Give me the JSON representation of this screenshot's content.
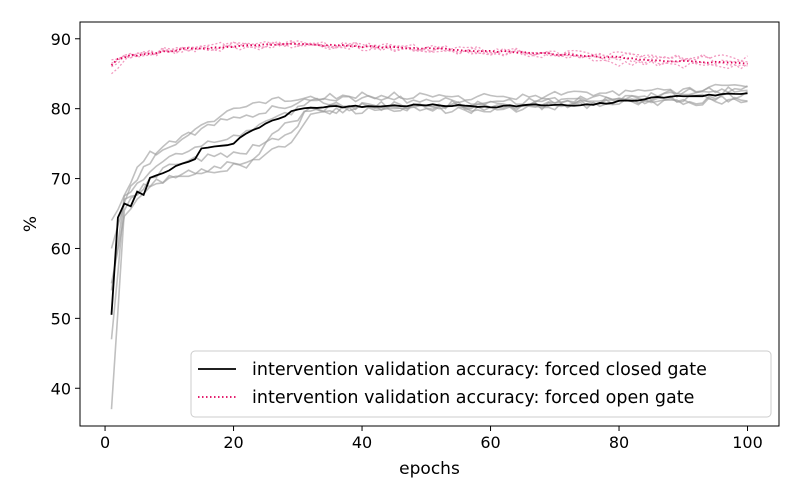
{
  "chart_data": {
    "type": "line",
    "xlabel": "epochs",
    "ylabel": "%",
    "xlim": [
      -3.9,
      104.9
    ],
    "ylim": [
      34.6,
      92.4
    ],
    "xticks": [
      0,
      20,
      40,
      60,
      80,
      100
    ],
    "yticks": [
      40,
      50,
      60,
      70,
      80,
      90
    ],
    "grid": false,
    "legend_position": "lower-right",
    "colors": {
      "closed_mean": "#000000",
      "closed_runs": "#9e9e9e",
      "open_mean": "#e0005a",
      "open_runs": "#f29ac0"
    },
    "series": [
      {
        "name": "intervention validation accuracy: forced closed gate",
        "style": "solid",
        "keypoints": [
          [
            1,
            50.5
          ],
          [
            2,
            64.5
          ],
          [
            3,
            66.3
          ],
          [
            4,
            66
          ],
          [
            5,
            68
          ],
          [
            6,
            67.8
          ],
          [
            7,
            70
          ],
          [
            8,
            70.5
          ],
          [
            10,
            71.3
          ],
          [
            12,
            72
          ],
          [
            14,
            72.8
          ],
          [
            15,
            74.3
          ],
          [
            18,
            74.6
          ],
          [
            20,
            75
          ],
          [
            22,
            76.5
          ],
          [
            24,
            77.4
          ],
          [
            26,
            78.2
          ],
          [
            28,
            79
          ],
          [
            30,
            80
          ],
          [
            34,
            80.3
          ],
          [
            40,
            80.3
          ],
          [
            44,
            80.4
          ],
          [
            50,
            80.5
          ],
          [
            56,
            80.4
          ],
          [
            60,
            80.3
          ],
          [
            66,
            80.5
          ],
          [
            70,
            80.5
          ],
          [
            74,
            80.4
          ],
          [
            80,
            81
          ],
          [
            86,
            81.6
          ],
          [
            90,
            81.8
          ],
          [
            94,
            81.9
          ],
          [
            97,
            82.1
          ],
          [
            100,
            82.2
          ]
        ]
      },
      {
        "name": "intervention validation accuracy: forced open gate",
        "style": "dotted",
        "keypoints": [
          [
            1,
            86.2
          ],
          [
            2,
            87.2
          ],
          [
            4,
            87.6
          ],
          [
            8,
            88
          ],
          [
            12,
            88.5
          ],
          [
            18,
            88.8
          ],
          [
            24,
            89.1
          ],
          [
            28,
            89.3
          ],
          [
            34,
            89.1
          ],
          [
            40,
            88.9
          ],
          [
            50,
            88.6
          ],
          [
            60,
            88.2
          ],
          [
            66,
            88
          ],
          [
            70,
            87.8
          ],
          [
            76,
            87.5
          ],
          [
            80,
            87.3
          ],
          [
            84,
            87
          ],
          [
            90,
            86.8
          ],
          [
            96,
            86.6
          ],
          [
            100,
            86.5
          ]
        ]
      }
    ],
    "individual_runs": {
      "closed_gate": [
        {
          "start": 37.0,
          "keypoints": [
            [
              1,
              37
            ],
            [
              3,
              65.5
            ],
            [
              6,
              69
            ],
            [
              10,
              70
            ],
            [
              16,
              71.5
            ],
            [
              22,
              72.5
            ],
            [
              28,
              74.5
            ],
            [
              32,
              79
            ],
            [
              40,
              80.5
            ],
            [
              60,
              80.6
            ],
            [
              80,
              81.2
            ],
            [
              100,
              83.5
            ]
          ]
        },
        {
          "start": 47.0,
          "keypoints": [
            [
              1,
              47
            ],
            [
              3,
              66.5
            ],
            [
              6,
              69
            ],
            [
              10,
              72
            ],
            [
              16,
              73
            ],
            [
              22,
              74
            ],
            [
              28,
              76
            ],
            [
              32,
              80
            ],
            [
              40,
              80.3
            ],
            [
              60,
              80
            ],
            [
              80,
              81
            ],
            [
              100,
              81
            ]
          ]
        },
        {
          "start": 54.0,
          "keypoints": [
            [
              1,
              54
            ],
            [
              3,
              67.5
            ],
            [
              6,
              70
            ],
            [
              10,
              73.5
            ],
            [
              16,
              75
            ],
            [
              22,
              76.5
            ],
            [
              28,
              79
            ],
            [
              32,
              81
            ],
            [
              40,
              80.5
            ],
            [
              60,
              80.4
            ],
            [
              80,
              81
            ],
            [
              100,
              82
            ]
          ]
        },
        {
          "start": 60.0,
          "keypoints": [
            [
              1,
              60
            ],
            [
              3,
              67
            ],
            [
              6,
              71.5
            ],
            [
              10,
              75
            ],
            [
              16,
              77.5
            ],
            [
              22,
              79
            ],
            [
              28,
              80.5
            ],
            [
              32,
              81
            ],
            [
              40,
              81.5
            ],
            [
              60,
              81
            ],
            [
              80,
              81.5
            ],
            [
              100,
              82.8
            ]
          ]
        },
        {
          "start": 64.0,
          "keypoints": [
            [
              1,
              64
            ],
            [
              3,
              67.5
            ],
            [
              6,
              73
            ],
            [
              10,
              74.5
            ],
            [
              16,
              78
            ],
            [
              22,
              80.5
            ],
            [
              28,
              81.3
            ],
            [
              32,
              81.6
            ],
            [
              40,
              82
            ],
            [
              60,
              81.7
            ],
            [
              80,
              82.2
            ],
            [
              100,
              83
            ]
          ]
        },
        {
          "start": 55.0,
          "keypoints": [
            [
              1,
              55
            ],
            [
              3,
              65
            ],
            [
              6,
              68
            ],
            [
              10,
              70.5
            ],
            [
              16,
              71
            ],
            [
              22,
              72
            ],
            [
              28,
              78
            ],
            [
              32,
              79.5
            ],
            [
              40,
              79.8
            ],
            [
              60,
              79.8
            ],
            [
              80,
              80.8
            ],
            [
              100,
              81.5
            ]
          ]
        }
      ],
      "open_gate": [
        {
          "start": 85.0,
          "keypoints": [
            [
              1,
              85
            ],
            [
              4,
              87.5
            ],
            [
              10,
              88.3
            ],
            [
              20,
              89
            ],
            [
              30,
              89.2
            ],
            [
              40,
              89
            ],
            [
              50,
              88.7
            ],
            [
              60,
              88.4
            ],
            [
              70,
              88
            ],
            [
              80,
              87.8
            ],
            [
              90,
              87.5
            ],
            [
              100,
              86
            ]
          ]
        },
        {
          "start": 86.5,
          "keypoints": [
            [
              1,
              86.5
            ],
            [
              4,
              87.8
            ],
            [
              10,
              88.5
            ],
            [
              20,
              89.2
            ],
            [
              30,
              89.4
            ],
            [
              40,
              89
            ],
            [
              50,
              88.6
            ],
            [
              60,
              88.1
            ],
            [
              70,
              87.6
            ],
            [
              80,
              86.5
            ],
            [
              90,
              86.2
            ],
            [
              100,
              86.2
            ]
          ]
        },
        {
          "start": 87.0,
          "keypoints": [
            [
              1,
              87
            ],
            [
              4,
              87.4
            ],
            [
              10,
              88.2
            ],
            [
              20,
              88.8
            ],
            [
              30,
              89
            ],
            [
              40,
              88.8
            ],
            [
              50,
              88.4
            ],
            [
              60,
              88
            ],
            [
              70,
              87.8
            ],
            [
              80,
              87.6
            ],
            [
              90,
              87.4
            ],
            [
              100,
              87.2
            ]
          ]
        },
        {
          "start": 86.0,
          "keypoints": [
            [
              1,
              86
            ],
            [
              4,
              87.6
            ],
            [
              10,
              88.6
            ],
            [
              20,
              88.7
            ],
            [
              30,
              89.5
            ],
            [
              40,
              88.7
            ],
            [
              50,
              88.5
            ],
            [
              60,
              88.3
            ],
            [
              70,
              87.9
            ],
            [
              80,
              87
            ],
            [
              90,
              86.6
            ],
            [
              100,
              86.8
            ]
          ]
        }
      ]
    }
  }
}
